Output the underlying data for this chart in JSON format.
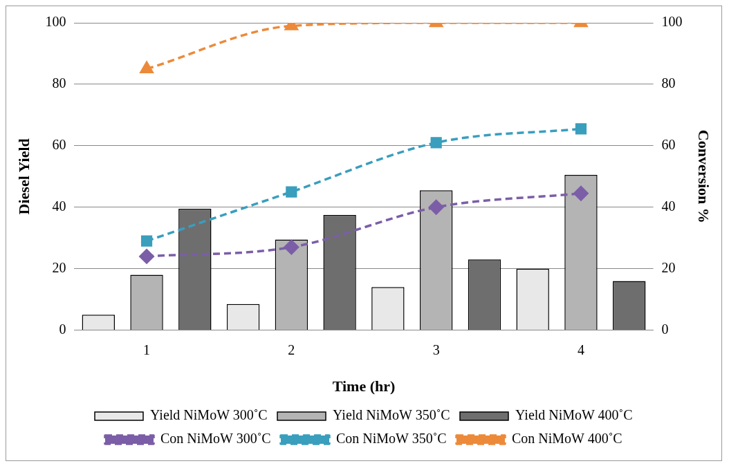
{
  "chart_data": {
    "type": "bar",
    "xlabel": "Time (hr)",
    "ylabel": "Diesel Yield",
    "y2label": "Conversion %",
    "categories": [
      "1",
      "2",
      "3",
      "4"
    ],
    "ylim": [
      0,
      100
    ],
    "yticks": [
      0,
      20,
      40,
      60,
      80,
      100
    ],
    "y2lim": [
      0,
      100
    ],
    "y2ticks": [
      0,
      20,
      40,
      60,
      80,
      100
    ],
    "grid": "y",
    "legend": "bottom",
    "line_style": "dashed",
    "series": [
      {
        "name": "Yield NiMoW 300˚C",
        "color": "#e8e8e8",
        "values": [
          5,
          8.5,
          14,
          20
        ]
      },
      {
        "name": "Yield NiMoW 350˚C",
        "color": "#b4b4b4",
        "values": [
          18,
          29.5,
          45.5,
          50.5
        ]
      },
      {
        "name": "Yield NiMoW 400˚C",
        "color": "#6e6e6e",
        "values": [
          39.5,
          37.5,
          23,
          16
        ]
      },
      {
        "name": "Con NiMoW 300˚C",
        "type": "line",
        "axis": "y2",
        "marker": "diamond",
        "color": "#7b5ea7",
        "values": [
          24,
          27,
          40,
          44.5
        ]
      },
      {
        "name": "Con NiMoW 350˚C",
        "type": "line",
        "axis": "y2",
        "marker": "square",
        "color": "#3a9ebd",
        "values": [
          29,
          45,
          61,
          65.5
        ]
      },
      {
        "name": "Con NiMoW 400˚C",
        "type": "line",
        "axis": "y2",
        "marker": "triangle",
        "color": "#ec8a3a",
        "values": [
          85,
          99,
          100,
          100
        ]
      }
    ]
  }
}
